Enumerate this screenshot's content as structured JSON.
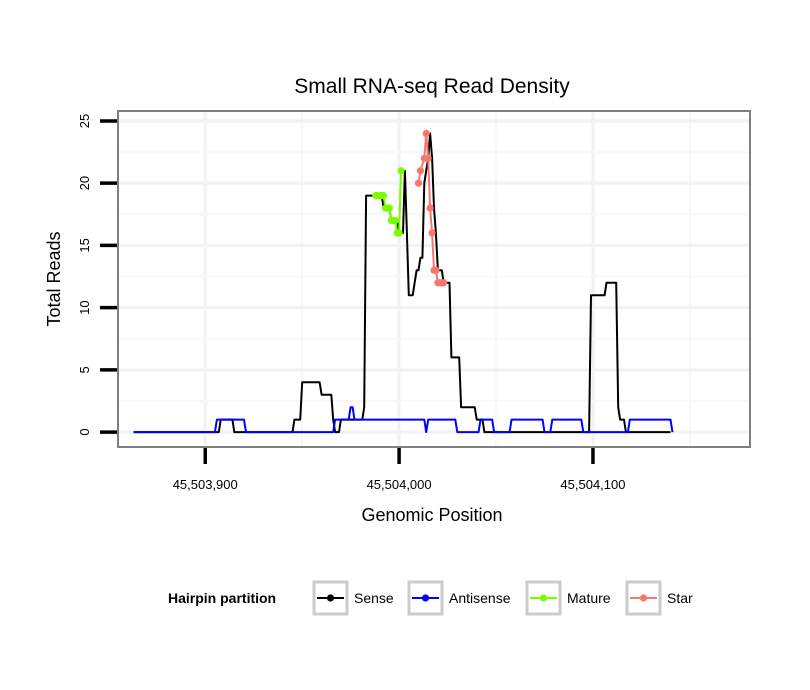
{
  "chart_data": {
    "type": "line",
    "title": "Small RNA-seq Read Density",
    "xlabel": "Genomic Position",
    "ylabel": "Total Reads",
    "xlim": [
      45503855,
      45504181
    ],
    "ylim": [
      -1.2,
      25.8
    ],
    "x_ticks": [
      {
        "value": 45503900,
        "label": "45,503,900"
      },
      {
        "value": 45504000,
        "label": "45,504,000"
      },
      {
        "value": 45504100,
        "label": "45,504,100"
      }
    ],
    "y_ticks": [
      {
        "value": 0,
        "label": "0"
      },
      {
        "value": 5,
        "label": "5"
      },
      {
        "value": 10,
        "label": "10"
      },
      {
        "value": 15,
        "label": "15"
      },
      {
        "value": 20,
        "label": "20"
      },
      {
        "value": 25,
        "label": "25"
      }
    ],
    "legend": {
      "title": "Hairpin partition",
      "position": "bottom",
      "items": [
        {
          "key": "sense",
          "label": "Sense"
        },
        {
          "key": "antisense",
          "label": "Antisense"
        },
        {
          "key": "mature",
          "label": "Mature"
        },
        {
          "key": "star",
          "label": "Star"
        }
      ]
    },
    "colors": {
      "sense": "#000000",
      "antisense": "#0000ff",
      "mature": "#7cfc00",
      "star": "#f8766d",
      "panel_border": "#7f7f7f",
      "grid_major": "#f2f2f2",
      "grid_minor": "#f8f8f8",
      "legend_box": "#cccccc"
    },
    "series": [
      {
        "name": "Sense",
        "key": "sense",
        "points": [
          [
            45503863,
            0
          ],
          [
            45503907,
            0
          ],
          [
            45503908,
            1
          ],
          [
            45503914,
            1
          ],
          [
            45503915,
            0
          ],
          [
            45503935,
            0
          ],
          [
            45503945,
            0
          ],
          [
            45503946,
            1
          ],
          [
            45503949,
            1
          ],
          [
            45503950,
            4
          ],
          [
            45503959,
            4
          ],
          [
            45503960,
            3
          ],
          [
            45503965,
            3
          ],
          [
            45503966,
            1
          ],
          [
            45503967,
            0
          ],
          [
            45503969,
            0
          ],
          [
            45503970,
            1
          ],
          [
            45503981,
            1
          ],
          [
            45503982,
            2
          ],
          [
            45503983,
            19
          ],
          [
            45503991,
            19
          ],
          [
            45503992,
            18
          ],
          [
            45503995,
            18
          ],
          [
            45503996,
            17
          ],
          [
            45503999,
            17
          ],
          [
            45504000,
            16
          ],
          [
            45504002,
            16
          ],
          [
            45504003,
            21
          ],
          [
            45504004,
            16
          ],
          [
            45504005,
            11
          ],
          [
            45504007,
            11
          ],
          [
            45504009,
            13
          ],
          [
            45504010,
            13
          ],
          [
            45504011,
            14
          ],
          [
            45504012,
            14
          ],
          [
            45504013,
            20
          ],
          [
            45504014,
            21
          ],
          [
            45504015,
            22
          ],
          [
            45504016,
            24
          ],
          [
            45504017,
            22
          ],
          [
            45504018,
            18
          ],
          [
            45504019,
            16
          ],
          [
            45504020,
            13
          ],
          [
            45504022,
            13
          ],
          [
            45504023,
            12
          ],
          [
            45504026,
            12
          ],
          [
            45504027,
            6
          ],
          [
            45504031,
            6
          ],
          [
            45504032,
            2
          ],
          [
            45504039,
            2
          ],
          [
            45504040,
            1
          ],
          [
            45504043,
            1
          ],
          [
            45504044,
            0
          ],
          [
            45504098,
            0
          ],
          [
            45504099,
            11
          ],
          [
            45504106,
            11
          ],
          [
            45504107,
            12
          ],
          [
            45504112,
            12
          ],
          [
            45504113,
            2
          ],
          [
            45504114,
            1
          ],
          [
            45504116,
            1
          ],
          [
            45504117,
            0
          ],
          [
            45504140,
            0
          ]
        ]
      },
      {
        "name": "Antisense",
        "key": "antisense",
        "points": [
          [
            45503863,
            0
          ],
          [
            45503905,
            0
          ],
          [
            45503906,
            1
          ],
          [
            45503920,
            1
          ],
          [
            45503921,
            0
          ],
          [
            45503953,
            0
          ],
          [
            45503954,
            0
          ],
          [
            45503955,
            0
          ],
          [
            45503966,
            0
          ],
          [
            45503967,
            1
          ],
          [
            45503974,
            1
          ],
          [
            45503975,
            2
          ],
          [
            45503976,
            2
          ],
          [
            45503977,
            1
          ],
          [
            45503999,
            1
          ],
          [
            45504004,
            1
          ],
          [
            45504013,
            1
          ],
          [
            45504014,
            0
          ],
          [
            45504015,
            1
          ],
          [
            45504029,
            1
          ],
          [
            45504030,
            0
          ],
          [
            45504041,
            0
          ],
          [
            45504042,
            1
          ],
          [
            45504048,
            1
          ],
          [
            45504049,
            0
          ],
          [
            45504057,
            0
          ],
          [
            45504058,
            1
          ],
          [
            45504074,
            1
          ],
          [
            45504075,
            0
          ],
          [
            45504078,
            0
          ],
          [
            45504079,
            1
          ],
          [
            45504094,
            1
          ],
          [
            45504095,
            0
          ],
          [
            45504118,
            0
          ],
          [
            45504119,
            1
          ],
          [
            45504140,
            1
          ],
          [
            45504141,
            0
          ]
        ]
      },
      {
        "name": "Mature",
        "key": "mature",
        "points": [
          [
            45503988,
            19
          ],
          [
            45503989,
            19
          ],
          [
            45503990,
            19
          ],
          [
            45503991,
            19
          ],
          [
            45503992,
            19
          ],
          [
            45503993,
            18
          ],
          [
            45503994,
            18
          ],
          [
            45503995,
            18
          ],
          [
            45503996,
            17
          ],
          [
            45503997,
            17
          ],
          [
            45503998,
            17
          ],
          [
            45503999,
            16
          ],
          [
            45504000,
            16
          ],
          [
            45504001,
            21
          ]
        ]
      },
      {
        "name": "Star",
        "key": "star",
        "points": [
          [
            45504010,
            20
          ],
          [
            45504011,
            21
          ],
          [
            45504013,
            22
          ],
          [
            45504014,
            24
          ],
          [
            45504015,
            22
          ],
          [
            45504016,
            18
          ],
          [
            45504017,
            16
          ],
          [
            45504018,
            13
          ],
          [
            45504019,
            13
          ],
          [
            45504020,
            12
          ],
          [
            45504021,
            12
          ],
          [
            45504022,
            12
          ],
          [
            45504023,
            12
          ]
        ]
      }
    ]
  }
}
